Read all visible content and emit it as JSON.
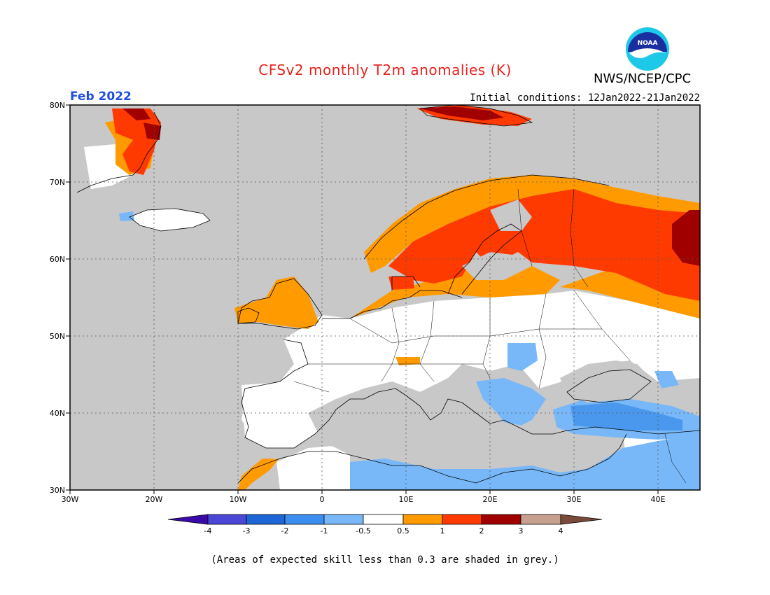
{
  "title": "CFSv2 monthly T2m anomalies (K)",
  "agency": "NWS/NCEP/CPC",
  "logo_text": "NOAA",
  "month_label": "Feb 2022",
  "initial_conditions": "Initial conditions: 12Jan2022-21Jan2022",
  "footnote": "(Areas of expected skill less than 0.3 are shaded in grey.)",
  "map": {
    "lon_range": [
      -30,
      45
    ],
    "lat_range": [
      30,
      80
    ],
    "x_ticks": [
      "30W",
      "20W",
      "10W",
      "0",
      "10E",
      "20E",
      "30E",
      "40E"
    ],
    "y_ticks": [
      "80N",
      "70N",
      "60N",
      "50N",
      "40N",
      "30N"
    ],
    "colors": {
      "low_skill": "#c8c8c8",
      "neutral": "#ffffff",
      "warm_0_5_1": "#ff9a00",
      "warm_1_2": "#ff3a00",
      "warm_2_3": "#a00000",
      "cool_0_5_1": "#78b8f8",
      "cool_1_2": "#4a98ee"
    }
  },
  "colorbar": {
    "labels": [
      "-4",
      "-3",
      "-2",
      "-1",
      "-0.5",
      "0.5",
      "1",
      "2",
      "3",
      "4"
    ],
    "colors": [
      "#3a0aa8",
      "#4a46d6",
      "#1e66d6",
      "#3c8ef0",
      "#78b8f8",
      "#ffffff",
      "#ff9a00",
      "#ff3a00",
      "#a00000",
      "#c8a090",
      "#7a4a3a"
    ]
  }
}
